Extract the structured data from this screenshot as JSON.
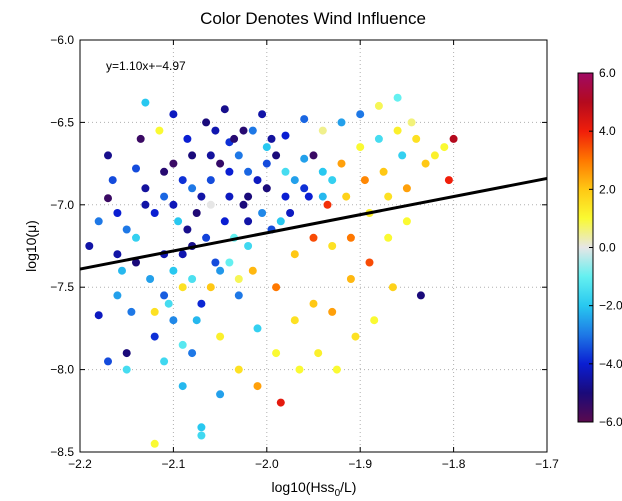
{
  "chart_data": {
    "type": "scatter",
    "title": "Color Denotes Wind Influence",
    "xlabel_main": "log10(Hss",
    "xlabel_sub": "0",
    "xlabel_tail": "/L)",
    "ylabel": "log10(μ)",
    "xlim": [
      -2.2,
      -1.7
    ],
    "ylim": [
      -8.5,
      -6.0
    ],
    "x_ticks": [
      -2.2,
      -2.1,
      -2.0,
      -1.9,
      -1.8,
      -1.7
    ],
    "x_tick_labels": [
      "−2.2",
      "−2.1",
      "−2.0",
      "−1.9",
      "−1.8",
      "−1.7"
    ],
    "y_ticks": [
      -6.0,
      -6.5,
      -7.0,
      -7.5,
      -8.0,
      -8.5
    ],
    "y_tick_labels": [
      "−6.0",
      "−6.5",
      "−7.0",
      "−7.5",
      "−8.0",
      "−8.5"
    ],
    "grid": true,
    "fit": {
      "slope": 1.1,
      "intercept": -4.97,
      "label": "y=1.10x+−4.97"
    },
    "colorbar": {
      "range": [
        -6,
        6
      ],
      "ticks": [
        6,
        4,
        2,
        0,
        -2,
        -4,
        -6
      ],
      "tick_labels": [
        "6.0",
        "4.0",
        "2.0",
        "0.0",
        "−2.0",
        "−4.0",
        "−6.0"
      ],
      "stops": [
        [
          -6,
          "#5a0a4e"
        ],
        [
          -5,
          "#1a0a7a"
        ],
        [
          -4,
          "#0a1ed2"
        ],
        [
          -3,
          "#1e78e6"
        ],
        [
          -2,
          "#28c8f0"
        ],
        [
          -1,
          "#64f0f0"
        ],
        [
          0,
          "#e6e6e6"
        ],
        [
          1,
          "#fafa32"
        ],
        [
          2,
          "#ffc814"
        ],
        [
          3,
          "#ff7800"
        ],
        [
          4,
          "#f01e0a"
        ],
        [
          5,
          "#b40a1e"
        ],
        [
          6,
          "#a00a64"
        ]
      ]
    },
    "points": [
      [
        -2.19,
        -7.25,
        -4.5
      ],
      [
        -2.18,
        -7.67,
        -4.2
      ],
      [
        -2.17,
        -7.95,
        -3.5
      ],
      [
        -2.16,
        -7.55,
        -2.5
      ],
      [
        -2.18,
        -7.1,
        -3.0
      ],
      [
        -2.17,
        -6.7,
        -4.8
      ],
      [
        -2.165,
        -6.85,
        -3.5
      ],
      [
        -2.16,
        -7.05,
        -4.0
      ],
      [
        -2.155,
        -7.4,
        -2.2
      ],
      [
        -2.15,
        -7.9,
        -5.0
      ],
      [
        -2.15,
        -8.0,
        -1.5
      ],
      [
        -2.145,
        -7.65,
        -3.0
      ],
      [
        -2.14,
        -7.2,
        -1.8
      ],
      [
        -2.14,
        -6.78,
        -3.5
      ],
      [
        -2.135,
        -6.6,
        -5.5
      ],
      [
        -2.13,
        -6.38,
        -2.0
      ],
      [
        -2.13,
        -7.0,
        -4.5
      ],
      [
        -2.125,
        -7.45,
        -2.5
      ],
      [
        -2.12,
        -7.8,
        -3.8
      ],
      [
        -2.12,
        -8.45,
        1.0
      ],
      [
        -2.115,
        -6.55,
        1.0
      ],
      [
        -2.11,
        -6.95,
        -3.2
      ],
      [
        -2.11,
        -7.3,
        -4.4
      ],
      [
        -2.105,
        -7.6,
        -1.5
      ],
      [
        -2.1,
        -6.45,
        -4.2
      ],
      [
        -2.1,
        -6.75,
        -5.5
      ],
      [
        -2.095,
        -7.1,
        -2.0
      ],
      [
        -2.09,
        -7.5,
        1.5
      ],
      [
        -2.09,
        -7.85,
        -1.2
      ],
      [
        -2.085,
        -6.6,
        -4.0
      ],
      [
        -2.08,
        -6.9,
        -3.0
      ],
      [
        -2.08,
        -7.25,
        -4.8
      ],
      [
        -2.075,
        -7.7,
        -2.2
      ],
      [
        -2.07,
        -8.35,
        -2.0
      ],
      [
        -2.07,
        -8.4,
        -1.6
      ],
      [
        -2.065,
        -6.5,
        -5.0
      ],
      [
        -2.06,
        -6.7,
        -4.6
      ],
      [
        -2.06,
        -7.0,
        0.0
      ],
      [
        -2.055,
        -7.35,
        -3.5
      ],
      [
        -2.05,
        -7.8,
        1.2
      ],
      [
        -2.05,
        -8.15,
        -2.5
      ],
      [
        -2.045,
        -6.42,
        -4.8
      ],
      [
        -2.04,
        -6.62,
        -3.8
      ],
      [
        -2.04,
        -6.95,
        -4.2
      ],
      [
        -2.035,
        -7.2,
        -1.0
      ],
      [
        -2.03,
        -7.55,
        -3.0
      ],
      [
        -2.03,
        -8.0,
        1.5
      ],
      [
        -2.025,
        -6.55,
        -5.2
      ],
      [
        -2.02,
        -6.8,
        -3.2
      ],
      [
        -2.02,
        -7.1,
        -4.5
      ],
      [
        -2.015,
        -7.4,
        2.2
      ],
      [
        -2.01,
        -7.75,
        -1.8
      ],
      [
        -2.01,
        -8.1,
        2.5
      ],
      [
        -2.005,
        -6.45,
        -4.5
      ],
      [
        -2.0,
        -6.65,
        -2.0
      ],
      [
        -2.0,
        -6.9,
        -5.0
      ],
      [
        -1.995,
        -7.15,
        -3.5
      ],
      [
        -1.99,
        -7.5,
        3.0
      ],
      [
        -1.99,
        -7.9,
        1.0
      ],
      [
        -1.985,
        -8.2,
        4.2
      ],
      [
        -1.98,
        -6.58,
        -4.0
      ],
      [
        -1.98,
        -6.8,
        -1.5
      ],
      [
        -1.975,
        -7.05,
        -4.2
      ],
      [
        -1.97,
        -7.3,
        2.0
      ],
      [
        -1.97,
        -7.7,
        1.5
      ],
      [
        -1.965,
        -8.0,
        1.0
      ],
      [
        -1.96,
        -6.48,
        -3.2
      ],
      [
        -1.96,
        -6.72,
        -2.5
      ],
      [
        -1.955,
        -6.95,
        -4.0
      ],
      [
        -1.95,
        -7.2,
        3.5
      ],
      [
        -1.95,
        -7.6,
        2.0
      ],
      [
        -1.945,
        -7.9,
        1.2
      ],
      [
        -1.94,
        -6.55,
        0.5
      ],
      [
        -1.94,
        -6.8,
        -2.0
      ],
      [
        -1.935,
        -7.0,
        3.8
      ],
      [
        -1.93,
        -7.25,
        1.5
      ],
      [
        -1.93,
        -7.65,
        2.5
      ],
      [
        -1.925,
        -8.0,
        1.0
      ],
      [
        -1.92,
        -6.5,
        -2.5
      ],
      [
        -1.92,
        -6.75,
        2.5
      ],
      [
        -1.915,
        -6.95,
        1.8
      ],
      [
        -1.91,
        -7.2,
        3.0
      ],
      [
        -1.91,
        -7.45,
        2.2
      ],
      [
        -1.905,
        -7.8,
        1.5
      ],
      [
        -1.9,
        -6.45,
        -3.0
      ],
      [
        -1.9,
        -6.65,
        1.0
      ],
      [
        -1.895,
        -6.85,
        2.8
      ],
      [
        -1.89,
        -7.05,
        1.2
      ],
      [
        -1.89,
        -7.35,
        3.5
      ],
      [
        -1.885,
        -7.7,
        1.0
      ],
      [
        -1.88,
        -6.4,
        0.8
      ],
      [
        -1.88,
        -6.6,
        -1.5
      ],
      [
        -1.875,
        -6.8,
        2.0
      ],
      [
        -1.87,
        -6.95,
        1.5
      ],
      [
        -1.87,
        -7.2,
        1.0
      ],
      [
        -1.865,
        -7.5,
        1.8
      ],
      [
        -1.86,
        -6.35,
        -1.0
      ],
      [
        -1.86,
        -6.55,
        1.2
      ],
      [
        -1.855,
        -6.7,
        -1.8
      ],
      [
        -1.85,
        -6.9,
        2.5
      ],
      [
        -1.85,
        -7.1,
        1.0
      ],
      [
        -1.845,
        -6.5,
        0.6
      ],
      [
        -1.84,
        -6.6,
        1.5
      ],
      [
        -1.835,
        -7.55,
        -5.0
      ],
      [
        -1.83,
        -6.75,
        2.0
      ],
      [
        -1.82,
        -6.7,
        1.2
      ],
      [
        -1.81,
        -6.65,
        1.0
      ],
      [
        -1.805,
        -6.85,
        4.0
      ],
      [
        -1.8,
        -6.6,
        5.0
      ],
      [
        -2.17,
        -6.96,
        -5.5
      ],
      [
        -2.16,
        -7.3,
        -4.5
      ],
      [
        -2.15,
        -7.15,
        -3.0
      ],
      [
        -2.14,
        -7.35,
        -5.0
      ],
      [
        -2.13,
        -6.9,
        -4.6
      ],
      [
        -2.12,
        -7.05,
        -4.0
      ],
      [
        -2.11,
        -6.8,
        -5.2
      ],
      [
        -2.1,
        -7.0,
        -4.3
      ],
      [
        -2.09,
        -6.85,
        -3.8
      ],
      [
        -2.08,
        -6.7,
        -5.0
      ],
      [
        -2.07,
        -6.95,
        -4.5
      ],
      [
        -2.06,
        -6.85,
        -3.5
      ],
      [
        -2.05,
        -6.75,
        -5.4
      ],
      [
        -2.04,
        -6.8,
        -4.0
      ],
      [
        -2.03,
        -6.7,
        -3.0
      ],
      [
        -2.02,
        -6.95,
        -5.0
      ],
      [
        -2.01,
        -6.85,
        -4.2
      ],
      [
        -2.0,
        -6.75,
        -3.5
      ],
      [
        -1.99,
        -6.7,
        -5.0
      ],
      [
        -1.98,
        -6.95,
        -4.0
      ],
      [
        -1.97,
        -6.85,
        -2.5
      ],
      [
        -1.96,
        -6.9,
        -3.8
      ],
      [
        -1.95,
        -6.7,
        -5.5
      ],
      [
        -1.94,
        -6.95,
        -2.2
      ],
      [
        -1.93,
        -6.85,
        -1.8
      ],
      [
        -2.055,
        -6.55,
        -4.4
      ],
      [
        -2.035,
        -6.6,
        -5.2
      ],
      [
        -2.015,
        -6.55,
        -3.0
      ],
      [
        -1.995,
        -6.6,
        -4.6
      ],
      [
        -2.085,
        -7.15,
        -4.8
      ],
      [
        -2.075,
        -7.05,
        -5.1
      ],
      [
        -2.065,
        -7.2,
        -3.6
      ],
      [
        -2.045,
        -7.1,
        -4.0
      ],
      [
        -2.025,
        -7.0,
        -5.0
      ],
      [
        -2.005,
        -7.05,
        -2.8
      ],
      [
        -1.985,
        -7.1,
        -2.0
      ],
      [
        -2.11,
        -7.55,
        -3.3
      ],
      [
        -2.1,
        -7.4,
        -2.0
      ],
      [
        -2.09,
        -7.3,
        -4.4
      ],
      [
        -2.08,
        -7.45,
        -1.4
      ],
      [
        -2.07,
        -7.6,
        -3.9
      ],
      [
        -2.06,
        -7.5,
        2.0
      ],
      [
        -2.05,
        -7.4,
        -2.6
      ],
      [
        -2.04,
        -7.35,
        -1.0
      ],
      [
        -2.03,
        -7.45,
        0.8
      ],
      [
        -2.02,
        -7.25,
        -1.6
      ],
      [
        -2.12,
        -7.65,
        1.5
      ],
      [
        -2.11,
        -7.95,
        -1.6
      ],
      [
        -2.1,
        -7.7,
        -2.8
      ],
      [
        -2.09,
        -8.1,
        -2.2
      ],
      [
        -2.08,
        -7.9,
        -3.0
      ]
    ]
  }
}
